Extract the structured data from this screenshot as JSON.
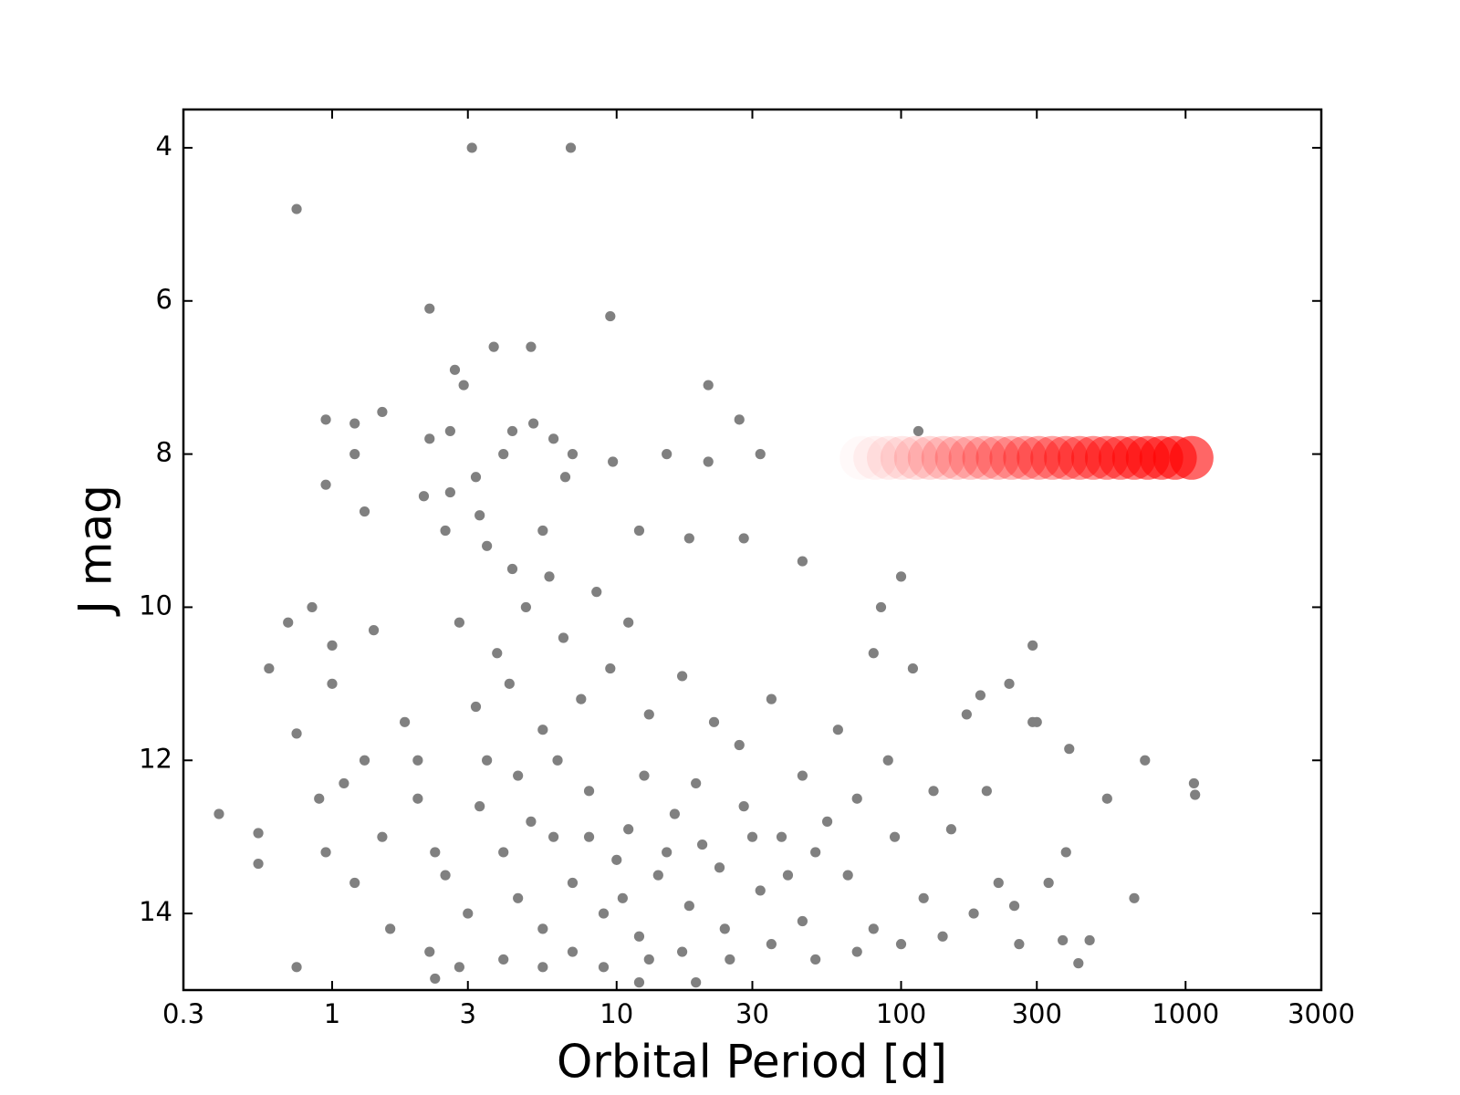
{
  "chart_data": {
    "type": "scatter",
    "xlabel": "Orbital Period [d]",
    "ylabel": "J mag",
    "xscale": "log",
    "xlim": [
      0.3,
      3000
    ],
    "xticks": [
      0.3,
      1,
      3,
      10,
      30,
      100,
      300,
      1000,
      3000
    ],
    "ylim": [
      15,
      3.5
    ],
    "yticks": [
      4,
      6,
      8,
      10,
      12,
      14
    ],
    "y_inverted": true,
    "grid": false,
    "series": [
      {
        "color": "#808080",
        "fade": false,
        "x": [
          3.1,
          6.9,
          0.75,
          2.2,
          9.5,
          3.7,
          5.0,
          2.7,
          2.9,
          21,
          1.2,
          0.95,
          1.5,
          27,
          4.3,
          5.1,
          6.0,
          2.2,
          2.6,
          115,
          1.2,
          4.0,
          7.0,
          9.7,
          15,
          21,
          32,
          0.95,
          3.2,
          2.1,
          2.6,
          6.6,
          1.3,
          3.3,
          5.5,
          12,
          18,
          28,
          0.7,
          0.85,
          1.0,
          0.6,
          100,
          45,
          110,
          0.4,
          0.55,
          0.55,
          1070,
          1080,
          720,
          530,
          660,
          380,
          420,
          460,
          370,
          390,
          290,
          290,
          300,
          240,
          190,
          2.3,
          19,
          12,
          85,
          80,
          0.75,
          0.75,
          1.5,
          2.0,
          2.5,
          3.0,
          3.5,
          4.0,
          4.5,
          5.0,
          5.5,
          6.0,
          7.0,
          8.0,
          9.0,
          10,
          11,
          12,
          14,
          16,
          18,
          20,
          24,
          28,
          32,
          38,
          45,
          55,
          65,
          80,
          95,
          120,
          150,
          180,
          220,
          3.2,
          4.2,
          5.5,
          7.5,
          9.5,
          13,
          17,
          22,
          27,
          35,
          45,
          60,
          2.8,
          3.8,
          4.8,
          6.5,
          8.5,
          11,
          3.5,
          4.3,
          5.8,
          2.5,
          1.8,
          1.3,
          1.1,
          0.9,
          0.95,
          1.2,
          1.6,
          2.2,
          2.8,
          4.0,
          5.5,
          7.0,
          9.0,
          13,
          17,
          25,
          35,
          50,
          70,
          100,
          140,
          1.4,
          1.0,
          2.0,
          2.3,
          3.3,
          4.5,
          6.2,
          8.0,
          10.5,
          12.5,
          15,
          19,
          23,
          30,
          40,
          50,
          70,
          90,
          130,
          170,
          200,
          250,
          260,
          330
        ],
        "values": [
          4.0,
          4.0,
          4.8,
          6.1,
          6.2,
          6.6,
          6.6,
          6.9,
          7.1,
          7.1,
          7.6,
          7.55,
          7.45,
          7.55,
          7.7,
          7.6,
          7.8,
          7.8,
          7.7,
          7.7,
          8.0,
          8.0,
          8.0,
          8.1,
          8.0,
          8.1,
          8.0,
          8.4,
          8.3,
          8.55,
          8.5,
          8.3,
          8.75,
          8.8,
          9.0,
          9.0,
          9.1,
          9.1,
          10.2,
          10.0,
          10.5,
          10.8,
          9.6,
          9.4,
          10.8,
          12.7,
          12.95,
          13.35,
          12.3,
          12.45,
          12.0,
          12.5,
          13.8,
          13.2,
          14.65,
          14.35,
          14.35,
          11.85,
          10.5,
          11.5,
          11.5,
          11.0,
          11.15,
          14.85,
          14.9,
          14.9,
          10.0,
          10.6,
          14.7,
          11.65,
          13.0,
          12.5,
          13.5,
          14.0,
          12.0,
          13.2,
          13.8,
          12.8,
          14.2,
          13.0,
          13.6,
          12.4,
          14.0,
          13.3,
          12.9,
          14.3,
          13.5,
          12.7,
          13.9,
          13.1,
          14.2,
          12.6,
          13.7,
          13.0,
          14.1,
          12.8,
          13.5,
          14.2,
          13.0,
          13.8,
          12.9,
          14.0,
          13.6,
          11.3,
          11.0,
          11.6,
          11.2,
          10.8,
          11.4,
          10.9,
          11.5,
          11.8,
          11.2,
          12.2,
          11.6,
          10.2,
          10.6,
          10.0,
          10.4,
          9.8,
          10.2,
          9.2,
          9.5,
          9.6,
          9.0,
          11.5,
          12.0,
          12.3,
          12.5,
          13.2,
          13.6,
          14.2,
          14.5,
          14.7,
          14.6,
          14.7,
          14.5,
          14.7,
          14.6,
          14.5,
          14.6,
          14.4,
          14.6,
          14.5,
          14.4,
          14.3,
          10.3,
          11.0,
          12.0,
          13.2,
          12.6,
          12.2,
          12.0,
          13.0,
          13.8,
          12.2,
          13.2,
          12.3,
          13.4,
          13.0,
          13.5,
          13.2,
          12.5,
          12.0,
          12.4,
          11.4,
          12.4,
          13.9,
          14.4,
          13.6
        ]
      },
      {
        "color": "#ff0000",
        "fade": true,
        "x": [
          65,
          72.6,
          81.1,
          90.5,
          101,
          112.8,
          126,
          140.7,
          157.1,
          175.4,
          195.9,
          218.7,
          244.2,
          272.7,
          304.5,
          340,
          379.7,
          424,
          473.4,
          528.6,
          590.3,
          659.1,
          736,
          821.8,
          917.7,
          1050
        ],
        "values": [
          8.05,
          8.05,
          8.05,
          8.05,
          8.05,
          8.05,
          8.05,
          8.05,
          8.05,
          8.05,
          8.05,
          8.05,
          8.05,
          8.05,
          8.05,
          8.05,
          8.05,
          8.05,
          8.05,
          8.05,
          8.05,
          8.05,
          8.05,
          8.05,
          8.05,
          8.05
        ]
      }
    ]
  }
}
